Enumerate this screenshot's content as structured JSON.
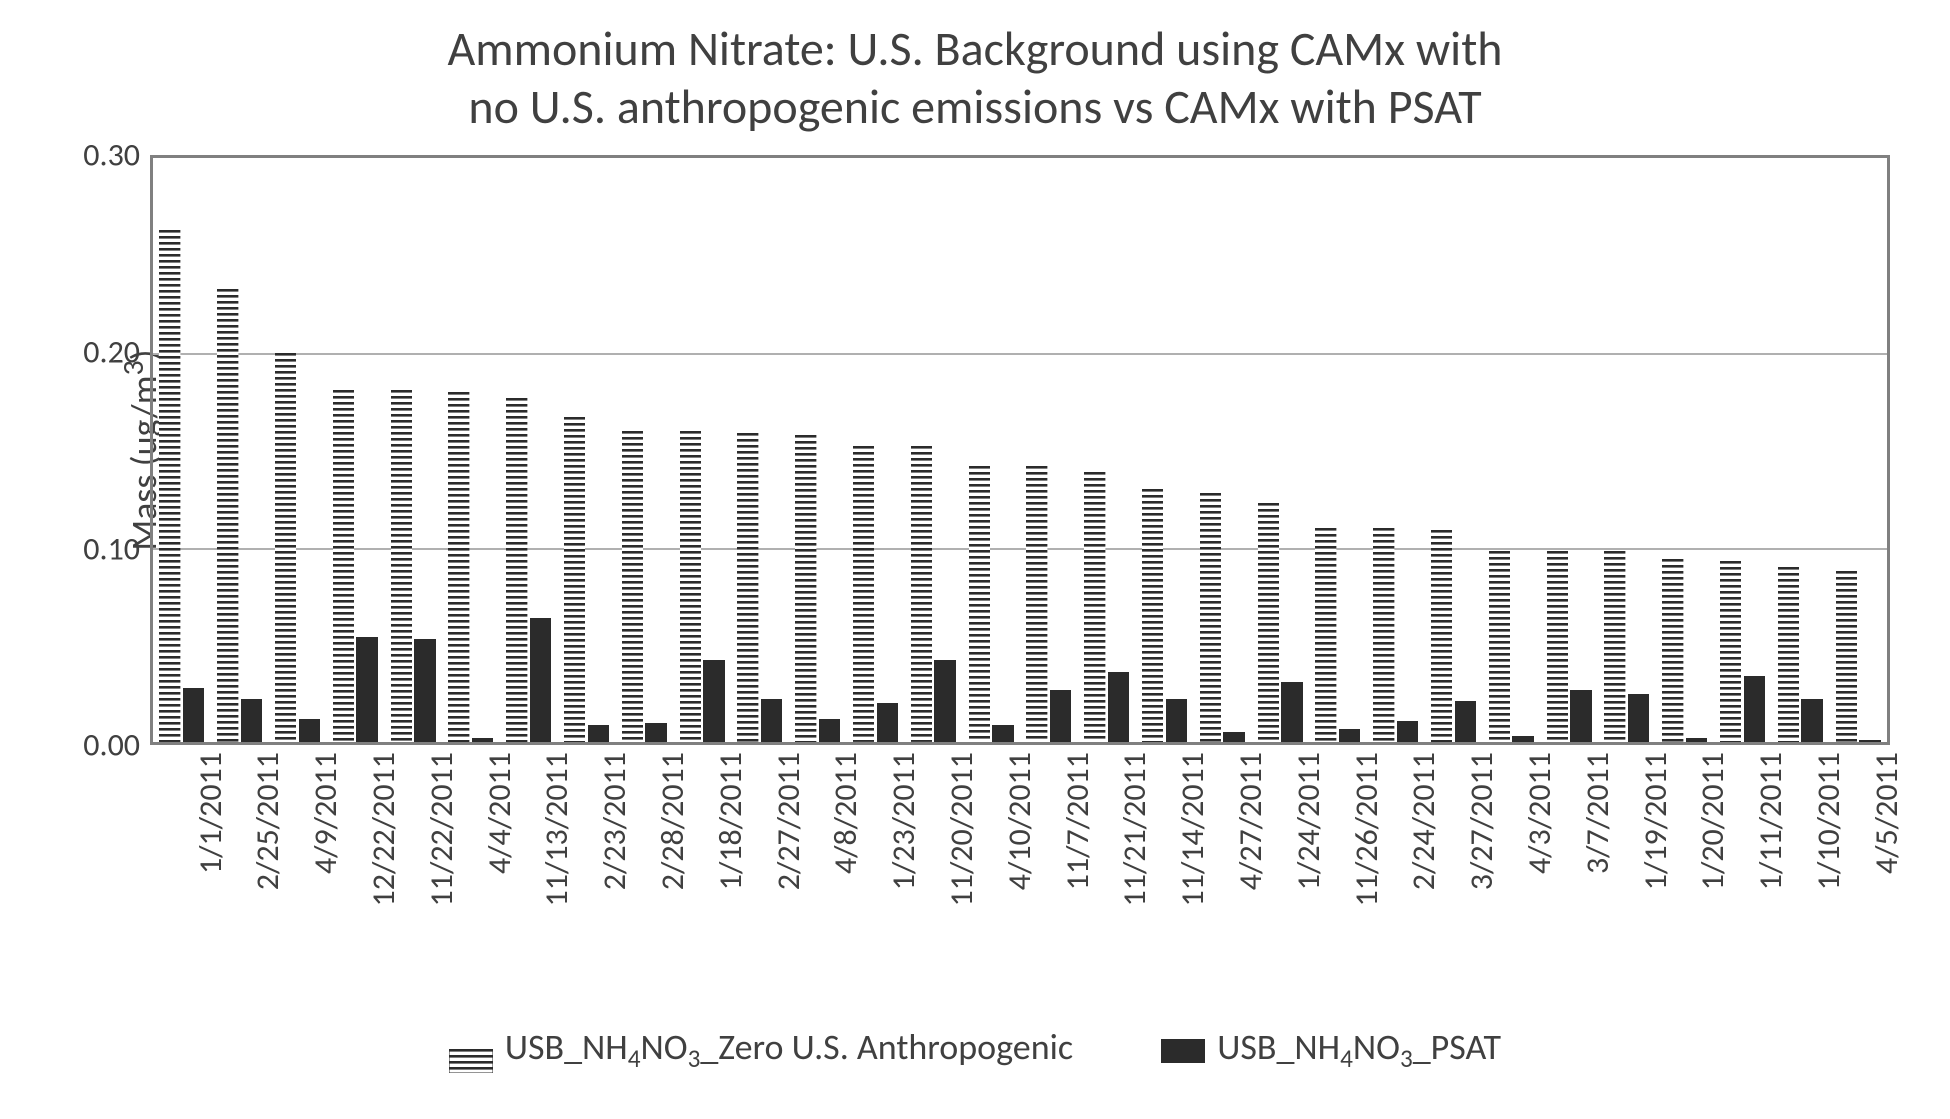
{
  "chart": {
    "type": "bar",
    "title_line1": "Ammonium Nitrate:  U.S. Background using CAMx with",
    "title_line2": "no U.S. anthropogenic emissions vs CAMx with PSAT",
    "title_fontsize": 48,
    "ylabel": "Mass  (ug/m",
    "ylabel_sup": "3",
    "ylabel_close": ")",
    "label_fontsize": 36,
    "ylim_min": 0.0,
    "ylim_max": 0.3,
    "yticks": [
      0.0,
      0.1,
      0.2,
      0.3
    ],
    "ytick_labels": [
      "0.00",
      "0.10",
      "0.20",
      "0.30"
    ],
    "background_color": "#ffffff",
    "grid_color": "#b0b0b0",
    "axis_color": "#808080",
    "categories": [
      "1/1/2011",
      "2/25/2011",
      "4/9/2011",
      "12/22/2011",
      "11/22/2011",
      "4/4/2011",
      "11/13/2011",
      "2/23/2011",
      "2/28/2011",
      "1/18/2011",
      "2/27/2011",
      "4/8/2011",
      "1/23/2011",
      "11/20/2011",
      "4/10/2011",
      "11/7/2011",
      "11/21/2011",
      "11/14/2011",
      "4/27/2011",
      "1/24/2011",
      "11/26/2011",
      "2/24/2011",
      "3/27/2011",
      "4/3/2011",
      "3/7/2011",
      "1/19/2011",
      "1/20/2011",
      "1/11/2011",
      "1/10/2011",
      "4/5/2011"
    ],
    "series": [
      {
        "name": "zero",
        "legend_prefix": "USB_NH",
        "legend_sub1": "4",
        "legend_mid": "NO",
        "legend_sub2": "3",
        "legend_suffix": "_Zero U.S. Anthropogenic",
        "pattern": "hstripes",
        "color": "#2b2b2b",
        "values": [
          0.263,
          0.233,
          0.2,
          0.181,
          0.181,
          0.18,
          0.177,
          0.167,
          0.16,
          0.16,
          0.159,
          0.158,
          0.152,
          0.152,
          0.142,
          0.142,
          0.139,
          0.13,
          0.128,
          0.123,
          0.11,
          0.11,
          0.109,
          0.098,
          0.098,
          0.098,
          0.094,
          0.093,
          0.09,
          0.088
        ]
      },
      {
        "name": "psat",
        "legend_prefix": "USB_NH",
        "legend_sub1": "4",
        "legend_mid": "NO",
        "legend_sub2": "3",
        "legend_suffix": "_PSAT",
        "pattern": "solid",
        "color": "#2b2b2b",
        "values": [
          0.028,
          0.022,
          0.012,
          0.054,
          0.053,
          0.002,
          0.064,
          0.009,
          0.01,
          0.042,
          0.022,
          0.012,
          0.02,
          0.042,
          0.009,
          0.027,
          0.036,
          0.022,
          0.005,
          0.031,
          0.007,
          0.011,
          0.021,
          0.003,
          0.027,
          0.025,
          0.002,
          0.034,
          0.022,
          0.001
        ]
      }
    ],
    "bar_group_gap": 0.22,
    "bar_inner_gap": 0.04
  }
}
